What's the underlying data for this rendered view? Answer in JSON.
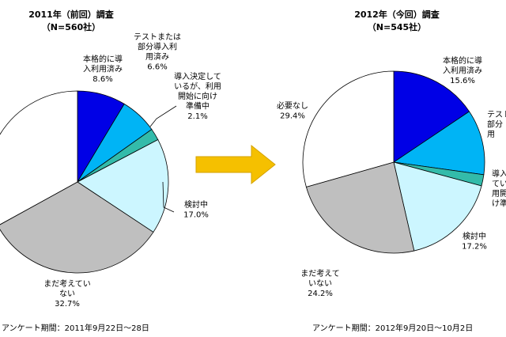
{
  "chart_data": [
    {
      "type": "pie",
      "title": "2011年（前回）調査",
      "subtitle": "（N=560社）",
      "categories": [
        "本格的に導入利用済み",
        "テストまたは部分導入利用済み",
        "導入決定しているが、利用開始に向け準備中",
        "検討中",
        "まだ考えていない",
        "必要なし"
      ],
      "values": [
        8.6,
        6.6,
        2.1,
        17.0,
        32.7,
        33.0
      ],
      "labels": [
        {
          "lines": [
            "本格的に導",
            "入利用済み"
          ],
          "value": "8.6%"
        },
        {
          "lines": [
            "テストまたは",
            "部分導入利",
            "用済み"
          ],
          "value": "6.6%"
        },
        {
          "lines": [
            "導入決定して",
            "いるが、利用",
            "開始に向け",
            "準備中"
          ],
          "value": "2.1%"
        },
        {
          "lines": [
            "検討中"
          ],
          "value": "17.0%"
        },
        {
          "lines": [
            "まだ考えてい",
            "ない"
          ],
          "value": "32.7%"
        },
        {
          "lines": [],
          "value": ""
        }
      ],
      "colors": [
        "#0000e6",
        "#00b4f5",
        "#33bbaa",
        "#ccf6ff",
        "#bfbfbf",
        "#ffffff"
      ],
      "note": "アンケート期間：2011年9月22日～28日"
    },
    {
      "type": "pie",
      "title": "2012年（今回）調査",
      "subtitle": "（N=545社）",
      "categories": [
        "本格的に導入利用済み",
        "テストまたは部分導入利用済み",
        "導入決定しているが、利用開始に向け準備中",
        "検討中",
        "まだ考えていない",
        "必要なし"
      ],
      "values": [
        15.6,
        11.6,
        2.0,
        17.2,
        24.2,
        29.4
      ],
      "labels": [
        {
          "lines": [
            "本格的に導",
            "入利用済み"
          ],
          "value": "15.6%"
        },
        {
          "lines": [
            "テスト",
            "部分",
            "用"
          ],
          "value": ""
        },
        {
          "lines": [
            "導入",
            "てい",
            "用開",
            "け準"
          ],
          "value": ""
        },
        {
          "lines": [
            "検討中"
          ],
          "value": "17.2%"
        },
        {
          "lines": [
            "まだ考えて",
            "いない"
          ],
          "value": "24.2%"
        },
        {
          "lines": [
            "必要なし"
          ],
          "value": "29.4%"
        }
      ],
      "colors": [
        "#0000e6",
        "#00b4f5",
        "#33bbaa",
        "#ccf6ff",
        "#bfbfbf",
        "#ffffff"
      ],
      "note": "アンケート期間：2012年9月20日～10月2日"
    }
  ],
  "arrow": {
    "color": "#f5c000",
    "stroke": "#d4a200"
  }
}
